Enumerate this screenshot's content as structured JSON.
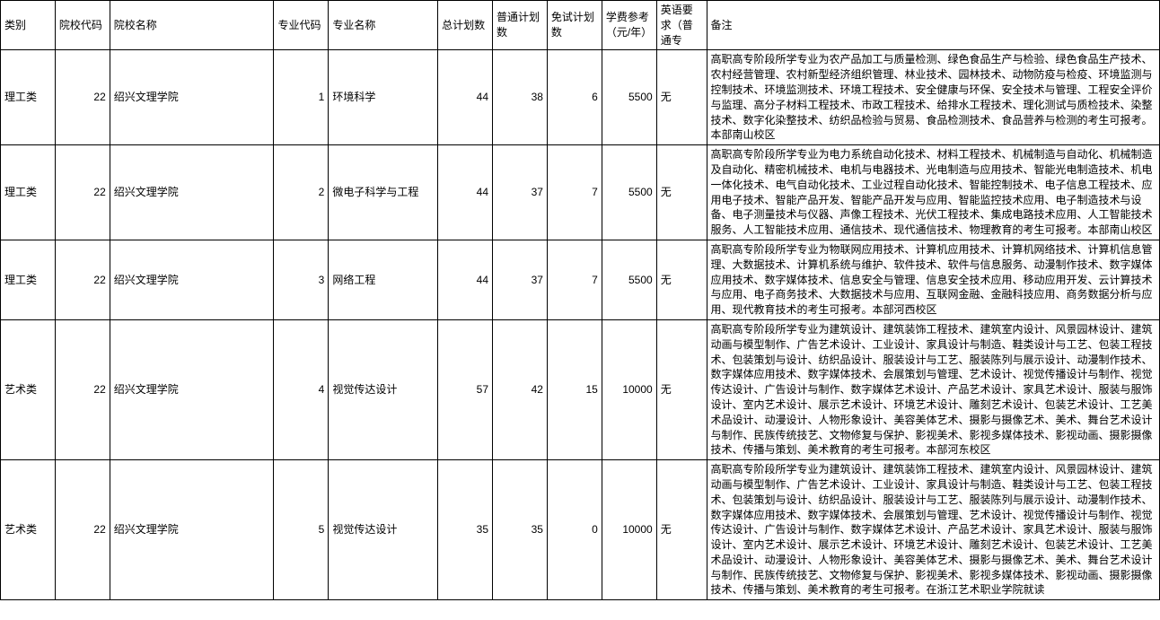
{
  "table": {
    "columns": [
      {
        "label": "类别",
        "class": "col-category"
      },
      {
        "label": "院校代码",
        "class": "col-schoolcode"
      },
      {
        "label": "院校名称",
        "class": "col-schoolname"
      },
      {
        "label": "专业代码",
        "class": "col-majorcode"
      },
      {
        "label": "专业名称",
        "class": "col-majorname"
      },
      {
        "label": "总计划数",
        "class": "col-totalplan"
      },
      {
        "label": "普通计划数",
        "class": "col-normalplan"
      },
      {
        "label": "免试计划数",
        "class": "col-exemptplan"
      },
      {
        "label": "学费参考（元/年）",
        "class": "col-tuition"
      },
      {
        "label": "英语要求（普通专",
        "class": "col-english"
      },
      {
        "label": "备注",
        "class": "col-remark"
      }
    ],
    "rows": [
      {
        "category": "理工类",
        "school_code": "22",
        "school_name": "绍兴文理学院",
        "major_code": "1",
        "major_name": "环境科学",
        "total_plan": "44",
        "normal_plan": "38",
        "exempt_plan": "6",
        "tuition": "5500",
        "english": "无",
        "remark": "高职高专阶段所学专业为农产品加工与质量检测、绿色食品生产与检验、绿色食品生产技术、农村经营管理、农村新型经济组织管理、林业技术、园林技术、动物防疫与检疫、环境监测与控制技术、环境监测技术、环境工程技术、安全健康与环保、安全技术与管理、工程安全评价与监理、高分子材料工程技术、市政工程技术、给排水工程技术、理化测试与质检技术、染整技术、数字化染整技术、纺织品检验与贸易、食品检测技术、食品营养与检测的考生可报考。本部南山校区"
      },
      {
        "category": "理工类",
        "school_code": "22",
        "school_name": "绍兴文理学院",
        "major_code": "2",
        "major_name": "微电子科学与工程",
        "total_plan": "44",
        "normal_plan": "37",
        "exempt_plan": "7",
        "tuition": "5500",
        "english": "无",
        "remark": "高职高专阶段所学专业为电力系统自动化技术、材料工程技术、机械制造与自动化、机械制造及自动化、精密机械技术、电机与电器技术、光电制造与应用技术、智能光电制造技术、机电一体化技术、电气自动化技术、工业过程自动化技术、智能控制技术、电子信息工程技术、应用电子技术、智能产品开发、智能产品开发与应用、智能监控技术应用、电子制造技术与设备、电子测量技术与仪器、声像工程技术、光伏工程技术、集成电路技术应用、人工智能技术服务、人工智能技术应用、通信技术、现代通信技术、物理教育的考生可报考。本部南山校区"
      },
      {
        "category": "理工类",
        "school_code": "22",
        "school_name": "绍兴文理学院",
        "major_code": "3",
        "major_name": "网络工程",
        "total_plan": "44",
        "normal_plan": "37",
        "exempt_plan": "7",
        "tuition": "5500",
        "english": "无",
        "remark": "高职高专阶段所学专业为物联网应用技术、计算机应用技术、计算机网络技术、计算机信息管理、大数据技术、计算机系统与维护、软件技术、软件与信息服务、动漫制作技术、数字媒体应用技术、数字媒体技术、信息安全与管理、信息安全技术应用、移动应用开发、云计算技术与应用、电子商务技术、大数据技术与应用、互联网金融、金融科技应用、商务数据分析与应用、现代教育技术的考生可报考。本部河西校区"
      },
      {
        "category": "艺术类",
        "school_code": "22",
        "school_name": "绍兴文理学院",
        "major_code": "4",
        "major_name": "视觉传达设计",
        "total_plan": "57",
        "normal_plan": "42",
        "exempt_plan": "15",
        "tuition": "10000",
        "english": "无",
        "remark": "高职高专阶段所学专业为建筑设计、建筑装饰工程技术、建筑室内设计、风景园林设计、建筑动画与模型制作、广告艺术设计、工业设计、家具设计与制造、鞋类设计与工艺、包装工程技术、包装策划与设计、纺织品设计、服装设计与工艺、服装陈列与展示设计、动漫制作技术、数字媒体应用技术、数字媒体技术、会展策划与管理、艺术设计、视觉传播设计与制作、视觉传达设计、广告设计与制作、数字媒体艺术设计、产品艺术设计、家具艺术设计、服装与服饰设计、室内艺术设计、展示艺术设计、环境艺术设计、雕刻艺术设计、包装艺术设计、工艺美术品设计、动漫设计、人物形象设计、美容美体艺术、摄影与摄像艺术、美术、舞台艺术设计与制作、民族传统技艺、文物修复与保护、影视美术、影视多媒体技术、影视动画、摄影摄像技术、传播与策划、美术教育的考生可报考。本部河东校区"
      },
      {
        "category": "艺术类",
        "school_code": "22",
        "school_name": "绍兴文理学院",
        "major_code": "5",
        "major_name": "视觉传达设计",
        "total_plan": "35",
        "normal_plan": "35",
        "exempt_plan": "0",
        "tuition": "10000",
        "english": "无",
        "remark": "高职高专阶段所学专业为建筑设计、建筑装饰工程技术、建筑室内设计、风景园林设计、建筑动画与模型制作、广告艺术设计、工业设计、家具设计与制造、鞋类设计与工艺、包装工程技术、包装策划与设计、纺织品设计、服装设计与工艺、服装陈列与展示设计、动漫制作技术、数字媒体应用技术、数字媒体技术、会展策划与管理、艺术设计、视觉传播设计与制作、视觉传达设计、广告设计与制作、数字媒体艺术设计、产品艺术设计、家具艺术设计、服装与服饰设计、室内艺术设计、展示艺术设计、环境艺术设计、雕刻艺术设计、包装艺术设计、工艺美术品设计、动漫设计、人物形象设计、美容美体艺术、摄影与摄像艺术、美术、舞台艺术设计与制作、民族传统技艺、文物修复与保护、影视美术、影视多媒体技术、影视动画、摄影摄像技术、传播与策划、美术教育的考生可报考。在浙江艺术职业学院就读"
      }
    ]
  }
}
